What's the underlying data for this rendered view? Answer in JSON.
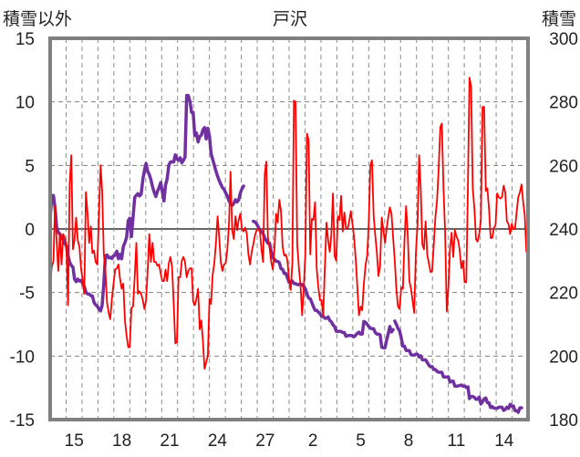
{
  "chart_data": {
    "type": "line",
    "title": "戸沢",
    "left_axis": {
      "label": "積雪以外",
      "ylim": [
        -15,
        15
      ],
      "ticks": [
        "15",
        "10",
        "5",
        "0",
        "-5",
        "-10",
        "-15"
      ]
    },
    "right_axis": {
      "label": "積雪",
      "ylim": [
        180,
        300
      ],
      "ticks": [
        "300",
        "280",
        "260",
        "240",
        "220",
        "200",
        "180"
      ]
    },
    "x_tick_labels": [
      "15",
      "18",
      "21",
      "24",
      "27",
      "2",
      "5",
      "8",
      "11",
      "14"
    ],
    "grid": true,
    "series": [
      {
        "axis": "left",
        "color": "#ff0000",
        "values": [
          -4.3,
          -3.0,
          -2.5,
          1.8,
          -1.0,
          -3.3,
          -0.3,
          -2.8,
          -0.4,
          -0.7,
          -1.2,
          -6.0,
          3.5,
          5.8,
          -1.6,
          -0.9,
          0.9,
          -0.9,
          -1.4,
          -3.1,
          -4.0,
          -5.1,
          2.9,
          1.2,
          -1.1,
          0.2,
          -1.9,
          -1.7,
          -2.6,
          -2.8,
          1.1,
          5.0,
          3.0,
          -1.9,
          -3.3,
          -5.8,
          -6.6,
          -7.1,
          -5.5,
          -4.3,
          -3.2,
          -3.1,
          -2.8,
          -3.9,
          -4.7,
          -4.3,
          -7.2,
          -8.4,
          -9.3,
          -9.3,
          -6.2,
          -6.1,
          -3.8,
          -1.1,
          -5.1,
          -4.9,
          -5.1,
          -5.6,
          -6.3,
          -5.6,
          -3.3,
          -0.4,
          -2.6,
          -1.1,
          -2.6,
          -2.6,
          -2.9,
          -2.8,
          -3.5,
          -4.1,
          -4.1,
          -3.2,
          -4.1,
          -2.7,
          -2.2,
          -3.0,
          -5.9,
          -9.0,
          -8.9,
          -3.8,
          -3.8,
          -2.5,
          -2.2,
          -2.6,
          -3.8,
          -3.3,
          -3.1,
          -3.1,
          -5.7,
          -6.0,
          -5.5,
          -4.7,
          -7.9,
          -7.2,
          -8.8,
          -11.0,
          -10.5,
          -10.0,
          -5.5,
          -5.9,
          -3.6,
          -2.7,
          -1.1,
          1.0,
          -0.7,
          -2.6,
          -3.3,
          -2.8,
          -2.7,
          -1.6,
          0.4,
          4.5,
          -0.1,
          -0.8,
          1.0,
          -0.1,
          0.7,
          1.2,
          0.0,
          -0.2,
          0.1,
          -0.4,
          -2.0,
          -2.8,
          -1.8,
          -1.2,
          -0.5,
          -0.1,
          0.0,
          -0.1,
          -1.6,
          -2.6,
          4.3,
          5.3,
          -0.7,
          -1.5,
          -2.6,
          -3.2,
          -1.6,
          1.2,
          0.5,
          2.3,
          1.4,
          -1.4,
          -2.1,
          -2.0,
          -2.5,
          -4.0,
          -4.8,
          -2.7,
          10.1,
          10.0,
          -1.2,
          -3.0,
          -4.4,
          -6.8,
          -4.8,
          -2.0,
          7.5,
          7.0,
          -2.0,
          0.8,
          0.7,
          2.1,
          -3.1,
          -4.6,
          -5.6,
          -5.6,
          -6.8,
          -3.1,
          0.5,
          -0.9,
          -1.8,
          -0.5,
          2.8,
          -2.1,
          -2.5,
          1.0,
          0.7,
          2.6,
          -0.2,
          1.3,
          0.1,
          0.0,
          0.6,
          1.4,
          0.4,
          -0.7,
          -2.4,
          -4.6,
          -6.8,
          -6.1,
          -6.4,
          -4.3,
          -2.9,
          -2.1,
          0.3,
          5.0,
          5.4,
          1.1,
          -0.5,
          -1.8,
          -3.7,
          -2.9,
          0.9,
          -0.1,
          -1.1,
          0.0,
          0.9,
          1.7,
          1.2,
          -0.7,
          -2.5,
          -4.7,
          -6.1,
          -6.3,
          -4.6,
          -4.7,
          -1.0,
          1.8,
          -0.4,
          -4.1,
          -4.7,
          -5.7,
          -6.6,
          -1.9,
          0.3,
          5.8,
          3.1,
          -1.2,
          -1.6,
          0.6,
          -2.0,
          -2.7,
          -3.4,
          -3.3,
          -1.3,
          0.9,
          2.2,
          4.7,
          8.0,
          8.3,
          3.3,
          -0.3,
          -6.5,
          -4.6,
          -1.6,
          -0.3,
          -2.2,
          -0.1,
          -0.6,
          -0.9,
          -1.7,
          -3.1,
          -2.5,
          -4.2,
          -4.2,
          3.4,
          11.9,
          11.2,
          3.2,
          1.6,
          -0.8,
          -1.0,
          -0.4,
          0.7,
          9.6,
          9.6,
          3.0,
          3.2,
          1.6,
          -0.7,
          -0.7,
          0.1,
          0.3,
          2.8,
          2.5,
          2.4,
          2.5,
          3.4,
          2.9,
          0.6,
          0.4,
          -0.4,
          0.4,
          0.0,
          0.0,
          1.3,
          2.5,
          2.9,
          3.5,
          2.1,
          1.1,
          -1.8,
          -1.8
        ]
      },
      {
        "axis": "right",
        "color": "#7030a0",
        "segments": [
          {
            "x0": 0,
            "values": [
              243.0,
              250.5,
              250.5,
              246.8,
              240.7,
              238.9,
              238.4,
              237.5,
              236.4,
              235.5,
              234.6,
              231.6,
              229.5,
              228.5,
              228.0,
              224.3,
              223.4,
              224.2,
              223.6,
              223.8,
              222.9,
              221.9,
              220.1,
              219.6,
              219.5,
              219.0,
              218.9,
              216.9,
              216.1,
              215.7,
              214.8,
              214.2,
              216.0,
              222.6,
              231.6,
              231.8,
              230.9,
              231.1,
              230.7,
              231.6,
              231.7,
              233.0,
              230.6,
              232.0,
              230.6,
              234.4,
              235.7,
              237.3,
              242.6,
              243.4,
              237.6,
              243.6,
              249.9,
              250.6,
              251.1,
              250.4,
              251.0,
              255.5,
              258.5,
              260.6,
              258.2,
              257.1,
              255.5,
              253.2,
              251.5,
              250.2,
              251.8,
              253.0,
              254.6,
              251.8,
              248.8,
              253.8,
              255.8,
              260.0,
              261.1,
              261.1,
              261.1,
              263.3,
              262.0,
              261.6,
              262.4,
              260.8,
              261.6,
              262.6,
              282.0,
              282.0,
              280.1,
              276.7,
              276.7,
              269.4,
              270.2,
              267.4,
              269.1,
              269.5,
              271.2,
              271.9,
              268.3,
              271.7,
              269.2,
              263.8,
              261.9,
              260.1,
              258.2,
              256.6,
              255.2,
              254.1,
              253.0,
              252.5,
              251.3,
              250.4,
              248.8,
              248.0,
              247.4,
              248.0,
              249.2,
              248.5,
              249.1,
              251.3,
              252.6,
              253.5
            ]
          },
          {
            "x0": 125,
            "values": [
              242.4,
              242.2,
              241.6,
              240.7,
              239.6,
              239.2,
              238.5,
              237.2,
              236.3,
              235.5,
              235.5,
              233.0,
              230.9,
              230.5,
              229.8,
              229.8,
              229.4,
              227.5,
              227.3,
              226.0,
              226.0,
              224.7,
              223.2,
              223.4,
              223.6,
              222.8,
              222.8,
              222.5,
              222.5,
              222.7,
              222.5,
              221.9,
              221.2,
              219.5,
              218.3,
              218.0,
              216.8,
              215.5,
              214.4,
              214.4,
              213.8,
              213.4,
              212.5,
              212.5,
              211.9,
              211.9,
              212.3,
              211.2,
              210.8,
              209.8,
              209.3,
              207.8,
              207.8,
              207.8,
              207.8,
              207.4,
              207.4,
              206.2,
              206.4,
              206.5,
              206.5,
              206.3,
              206.1,
              206.6,
              207.2,
              207.5,
              206.9,
              206.9,
              210.9,
              210.6,
              210.0,
              209.3,
              208.8,
              208.6,
              208.6,
              207.4,
              206.9,
              206.9,
              206.7,
              202.8,
              202.6,
              202.6,
              204.9,
              207.0,
              209.3,
              207.6,
              208.3
            ]
          },
          {
            "x0": 212,
            "values": [
              211.0,
              210.0,
              208.7,
              207.9,
              205.7,
              203.1,
              203.1,
              201.8,
              201.7,
              201.7,
              200.4,
              200.3,
              200.3,
              200.6,
              200.6,
              199.7,
              200.1,
              198.8,
              198.8,
              198.8,
              198.0,
              197.1,
              196.6,
              196.7,
              195.8,
              195.8,
              195.2,
              194.9,
              194.9,
              194.9,
              193.4,
              193.4,
              193.4,
              193.4,
              191.8,
              192.1,
              192.1,
              190.5,
              190.5,
              190.6,
              190.7,
              190.9,
              190.5,
              190.6,
              190.1,
              190.3,
              186.6,
              187.3,
              187.3,
              187.0,
              186.4,
              186.4,
              187.1,
              184.9,
              185.6,
              186.5,
              186.8,
              185.3,
              185.3,
              183.8,
              184.1,
              183.6,
              183.6,
              183.5,
              183.9,
              183.9,
              183.9,
              182.9,
              183.2,
              183.9,
              183.5,
              184.8,
              184.2,
              184.3,
              182.8,
              182.8,
              182.3,
              183.7,
              183.7
            ]
          }
        ]
      }
    ]
  }
}
